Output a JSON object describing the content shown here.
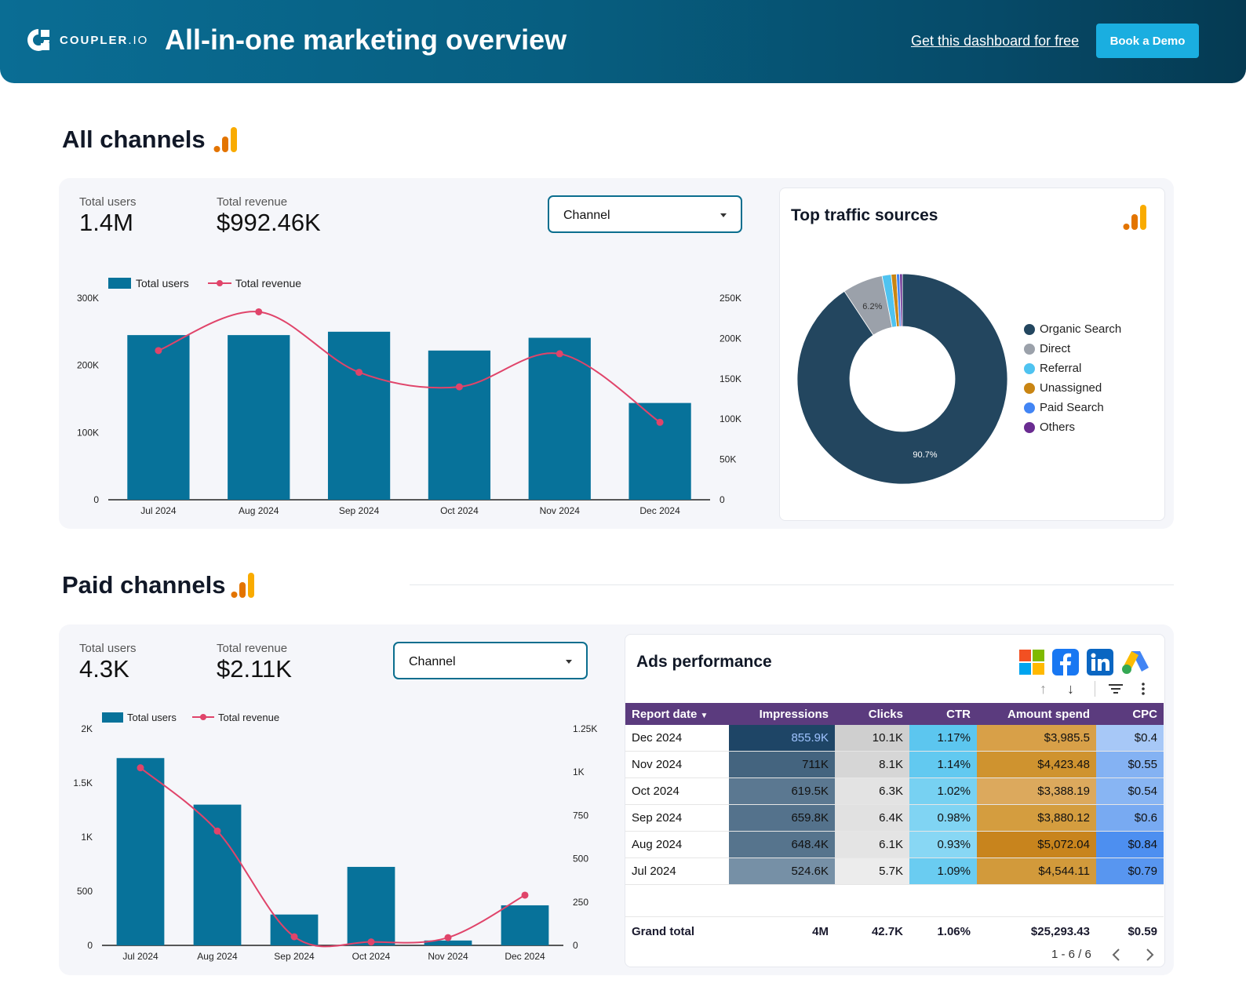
{
  "header": {
    "brand": "COUPLER",
    "brand_suffix": ".IO",
    "title": "All-in-one marketing overview",
    "free_link": "Get this dashboard for free",
    "demo_button": "Book a Demo"
  },
  "colors": {
    "header_start": "#0a6d94",
    "bar": "#07729a",
    "line": "#e0446a",
    "accent_button": "#1aaee0",
    "table_header": "#5b3b7e"
  },
  "all_channels": {
    "title": "All channels",
    "total_users_label": "Total users",
    "total_users_value": "1.4M",
    "total_revenue_label": "Total revenue",
    "total_revenue_value": "$992.46K",
    "dropdown_label": "Channel"
  },
  "paid_channels": {
    "title": "Paid channels",
    "total_users_label": "Total users",
    "total_users_value": "4.3K",
    "total_revenue_label": "Total revenue",
    "total_revenue_value": "$2.11K",
    "dropdown_label": "Channel"
  },
  "traffic": {
    "title": "Top traffic sources"
  },
  "ads": {
    "title": "Ads performance",
    "icons": [
      "microsoft-icon",
      "facebook-icon",
      "linkedin-icon",
      "google-ads-icon"
    ],
    "columns": [
      "Report date",
      "Impressions",
      "Clicks",
      "CTR",
      "Amount spend",
      "CPC"
    ],
    "rows": [
      [
        "Dec 2024",
        "855.9K",
        "10.1K",
        "1.17%",
        "$3,985.5",
        "$0.4"
      ],
      [
        "Nov 2024",
        "711K",
        "8.1K",
        "1.14%",
        "$4,423.48",
        "$0.55"
      ],
      [
        "Oct 2024",
        "619.5K",
        "6.3K",
        "1.02%",
        "$3,388.19",
        "$0.54"
      ],
      [
        "Sep 2024",
        "659.8K",
        "6.4K",
        "0.98%",
        "$3,880.12",
        "$0.6"
      ],
      [
        "Aug 2024",
        "648.4K",
        "6.1K",
        "0.93%",
        "$5,072.04",
        "$0.84"
      ],
      [
        "Jul 2024",
        "524.6K",
        "5.7K",
        "1.09%",
        "$4,544.11",
        "$0.79"
      ]
    ],
    "cell_colors": [
      [
        "#1e4566",
        "#cfcfcf",
        "#5cc6ef",
        "#d8a048",
        "#a7c8f7"
      ],
      [
        "#44647f",
        "#d6d6d6",
        "#62c9f0",
        "#cf932f",
        "#84b2f3"
      ],
      [
        "#5b7891",
        "#e3e3e3",
        "#77d1f2",
        "#dca95d",
        "#88b5f3"
      ],
      [
        "#54728c",
        "#e1e1e1",
        "#80d4f3",
        "#d49d3f",
        "#78aaf2"
      ],
      [
        "#56748d",
        "#e4e4e4",
        "#88d7f4",
        "#c8841d",
        "#4d8ff0"
      ],
      [
        "#7690a6",
        "#ececec",
        "#6accf1",
        "#d29a3b",
        "#5896f0"
      ]
    ],
    "grand_total_label": "Grand total",
    "grand_total": [
      "4M",
      "42.7K",
      "1.06%",
      "$25,293.43",
      "$0.59"
    ],
    "pagination": "1 - 6 / 6"
  },
  "chart_data": [
    {
      "id": "all-channels-combo",
      "type": "bar",
      "title": "",
      "categories": [
        "Jul 2024",
        "Aug 2024",
        "Sep 2024",
        "Oct 2024",
        "Nov 2024",
        "Dec 2024"
      ],
      "series": [
        {
          "name": "Total users",
          "type": "bar",
          "axis": "left",
          "values": [
            245000,
            245000,
            250000,
            222000,
            241000,
            144000
          ]
        },
        {
          "name": "Total revenue",
          "type": "line",
          "axis": "right",
          "values": [
            185000,
            233000,
            158000,
            140000,
            181000,
            96000
          ]
        }
      ],
      "ylim_left": [
        0,
        300000
      ],
      "yticks_left": [
        "0",
        "100K",
        "200K",
        "300K"
      ],
      "ylim_right": [
        0,
        250000
      ],
      "yticks_right": [
        "0",
        "50K",
        "100K",
        "150K",
        "200K",
        "250K"
      ],
      "legend": "top-left"
    },
    {
      "id": "traffic-donut",
      "type": "pie",
      "title": "Top traffic sources",
      "labels": [
        "Organic Search",
        "Direct",
        "Referral",
        "Unassigned",
        "Paid Search",
        "Others"
      ],
      "values": [
        90.7,
        6.2,
        1.4,
        0.8,
        0.5,
        0.4
      ],
      "colors": [
        "#23465f",
        "#9ba1aa",
        "#4fc3f0",
        "#c98513",
        "#4285f4",
        "#6a2c91"
      ],
      "label_shown": [
        "90.7%",
        "6.2%",
        "",
        "",
        "",
        ""
      ]
    },
    {
      "id": "paid-channels-combo",
      "type": "bar",
      "title": "",
      "categories": [
        "Jul 2024",
        "Aug 2024",
        "Sep 2024",
        "Oct 2024",
        "Nov 2024",
        "Dec 2024"
      ],
      "series": [
        {
          "name": "Total users",
          "type": "bar",
          "axis": "left",
          "values": [
            1730,
            1300,
            285,
            725,
            45,
            370
          ]
        },
        {
          "name": "Total revenue",
          "type": "line",
          "axis": "right",
          "values": [
            1025,
            660,
            50,
            20,
            45,
            290
          ]
        }
      ],
      "ylim_left": [
        0,
        2000
      ],
      "yticks_left": [
        "0",
        "500",
        "1K",
        "1.5K",
        "2K"
      ],
      "ylim_right": [
        0,
        1250
      ],
      "yticks_right": [
        "0",
        "250",
        "500",
        "750",
        "1K",
        "1.25K"
      ],
      "legend": "top-left"
    }
  ]
}
